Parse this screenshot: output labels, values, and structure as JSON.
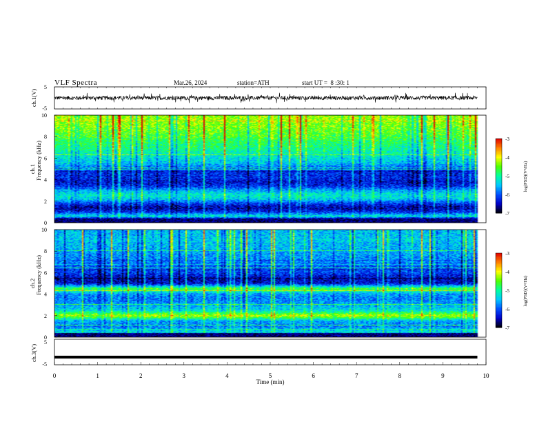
{
  "header": {
    "title": "VLF Spectra",
    "date": "Mar.26, 2024",
    "station": "station=ATH",
    "start_ut": "start UT =  8 :30: 1"
  },
  "colors": {
    "waveform": "#000000",
    "colormap": [
      "#000000",
      "#0000c8",
      "#0050ff",
      "#00c8ff",
      "#00ffa0",
      "#50ff00",
      "#ffff00",
      "#ff8000",
      "#e00000",
      "#ffffff"
    ]
  },
  "chart_data": [
    {
      "type": "line",
      "id": "ch1-waveform",
      "ylabel": "ch.1(V)",
      "yticks": [
        "5",
        "-5"
      ],
      "ylim": [
        -5,
        5
      ],
      "xlim": [
        0,
        10
      ],
      "description_values": {
        "x_end_min": 9.8,
        "amplitude_v": 1.5
      }
    },
    {
      "type": "heatmap",
      "id": "ch1-spectrogram",
      "ylabel_top": "ch.1",
      "ylabel": "Frequency (kHz)",
      "yticks": [
        "0",
        "2",
        "4",
        "6",
        "8",
        "10"
      ],
      "ylim": [
        0,
        10
      ],
      "xlim": [
        0,
        10
      ],
      "x_end_min": 9.8,
      "colorbar": {
        "label": "log(PSD)(V²/Hz)",
        "ticks": [
          "-3",
          "-4",
          "-5",
          "-6",
          "-7"
        ],
        "range": [
          -7,
          -3
        ]
      },
      "profile_khz": [
        [
          0,
          -6.8
        ],
        [
          0.3,
          -7
        ],
        [
          0.6,
          -5.2
        ],
        [
          1.0,
          -6.2
        ],
        [
          1.4,
          -6.6
        ],
        [
          1.8,
          -6.1
        ],
        [
          2.2,
          -5.4
        ],
        [
          2.6,
          -5.2
        ],
        [
          3.0,
          -5.6
        ],
        [
          3.4,
          -6.2
        ],
        [
          3.8,
          -6.4
        ],
        [
          4.2,
          -6.2
        ],
        [
          4.6,
          -6.3
        ],
        [
          5.0,
          -6.0
        ],
        [
          5.5,
          -5.5
        ],
        [
          6.0,
          -5.3
        ],
        [
          6.5,
          -5.1
        ],
        [
          7.0,
          -4.9
        ],
        [
          7.5,
          -4.8
        ],
        [
          8.0,
          -4.6
        ],
        [
          8.5,
          -4.5
        ],
        [
          9.0,
          -4.4
        ],
        [
          9.5,
          -4.3
        ],
        [
          10,
          -4.3
        ]
      ]
    },
    {
      "type": "heatmap",
      "id": "ch2-spectrogram",
      "ylabel_top": "ch.2",
      "ylabel": "Frequency (kHz)",
      "yticks": [
        "0",
        "2",
        "4",
        "6",
        "8",
        "10"
      ],
      "ylim": [
        0,
        10
      ],
      "xlim": [
        0,
        10
      ],
      "x_end_min": 9.8,
      "colorbar": {
        "label": "log(PSD)(V²/Hz)",
        "ticks": [
          "-3",
          "-4",
          "-5",
          "-6",
          "-7"
        ],
        "range": [
          -7,
          -3
        ]
      },
      "profile_khz": [
        [
          0,
          -6.5
        ],
        [
          0.5,
          -5.3
        ],
        [
          1.0,
          -5.8
        ],
        [
          1.5,
          -5.6
        ],
        [
          2.0,
          -4.2
        ],
        [
          2.5,
          -5.3
        ],
        [
          3.0,
          -5.6
        ],
        [
          3.5,
          -5.8
        ],
        [
          4.0,
          -5.7
        ],
        [
          4.5,
          -4.6
        ],
        [
          5.0,
          -6.4
        ],
        [
          5.5,
          -6.5
        ],
        [
          6.0,
          -6.1
        ],
        [
          6.5,
          -6.0
        ],
        [
          7.0,
          -5.8
        ],
        [
          7.5,
          -5.7
        ],
        [
          8.0,
          -5.6
        ],
        [
          8.5,
          -5.5
        ],
        [
          9.0,
          -5.4
        ],
        [
          9.5,
          -5.5
        ],
        [
          10,
          -5.5
        ]
      ]
    },
    {
      "type": "line",
      "id": "ch3-waveform",
      "ylabel": "ch.3(V)",
      "yticks": [
        "5",
        "-5"
      ],
      "ylim": [
        -5,
        5
      ],
      "xlim": [
        0,
        10
      ],
      "xlabel": "Time (min)",
      "xticks": [
        "0",
        "1",
        "2",
        "3",
        "4",
        "5",
        "6",
        "7",
        "8",
        "9",
        "10"
      ],
      "level_v": -2.0
    }
  ]
}
